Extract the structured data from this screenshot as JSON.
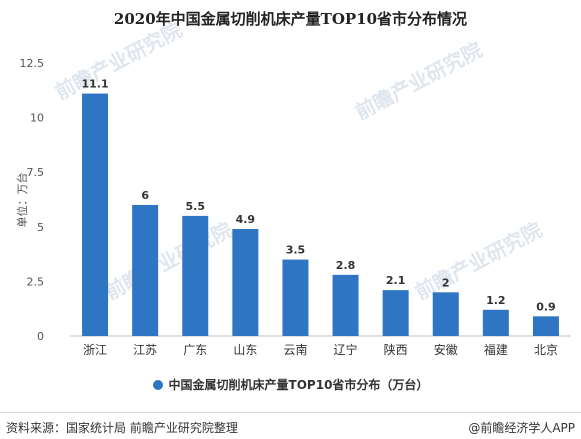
{
  "chart_data": {
    "type": "bar",
    "title": "2020年中国金属切削机床产量TOP10省市分布情况",
    "ylabel": "单位：万台",
    "categories": [
      "浙江",
      "江苏",
      "广东",
      "山东",
      "云南",
      "辽宁",
      "陕西",
      "安徽",
      "福建",
      "北京"
    ],
    "values": [
      11.1,
      6,
      5.5,
      4.9,
      3.5,
      2.8,
      2.1,
      2,
      1.2,
      0.9
    ],
    "data_labels": [
      "11.1",
      "6",
      "5.5",
      "4.9",
      "3.5",
      "2.8",
      "2.1",
      "2",
      "1.2",
      "0.9"
    ],
    "yticks": [
      "0",
      "2.5",
      "5",
      "7.5",
      "10",
      "12.5"
    ],
    "ylim": [
      0,
      12.5
    ],
    "grid": false,
    "legend_position": "bottom",
    "series": [
      {
        "name": "中国金属切削机床产量TOP10省市分布（万台）",
        "color": "#2e75c4"
      }
    ]
  },
  "footer": {
    "source": "资料来源：国家统计局 前瞻产业研究院整理",
    "credit": "@前瞻经济学人APP"
  },
  "watermark": {
    "text": "前瞻产业研究院"
  },
  "colors": {
    "bar": "#2e75c4",
    "axis": "#bfbfbf",
    "label": "#333333"
  }
}
